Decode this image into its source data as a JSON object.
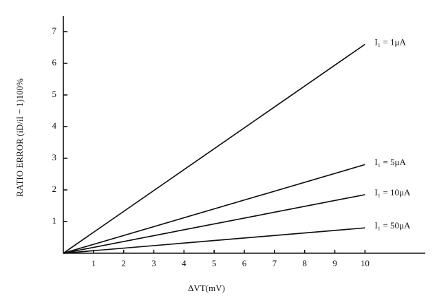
{
  "chart_data": {
    "type": "line",
    "x_label": "ΔVT(mV)",
    "y_label": "RATIO ERROR (iD/iI − 1)100%",
    "x": [
      0,
      10
    ],
    "series": [
      {
        "name": "I₁ = 1μA",
        "color": "#111111",
        "values": [
          0,
          6.6
        ]
      },
      {
        "name": "I₁ = 5μA",
        "color": "#111111",
        "values": [
          0,
          2.8
        ]
      },
      {
        "name": "I₁ = 10μA",
        "color": "#111111",
        "values": [
          0,
          1.85
        ]
      },
      {
        "name": "I₁ = 50μA",
        "color": "#111111",
        "values": [
          0,
          0.8
        ]
      }
    ],
    "xlim": [
      0,
      12
    ],
    "ylim": [
      0,
      7.5
    ],
    "xticks": [
      1,
      2,
      3,
      4,
      5,
      6,
      7,
      8,
      9,
      10
    ],
    "yticks": [
      1,
      2,
      3,
      4,
      5,
      6,
      7
    ]
  }
}
